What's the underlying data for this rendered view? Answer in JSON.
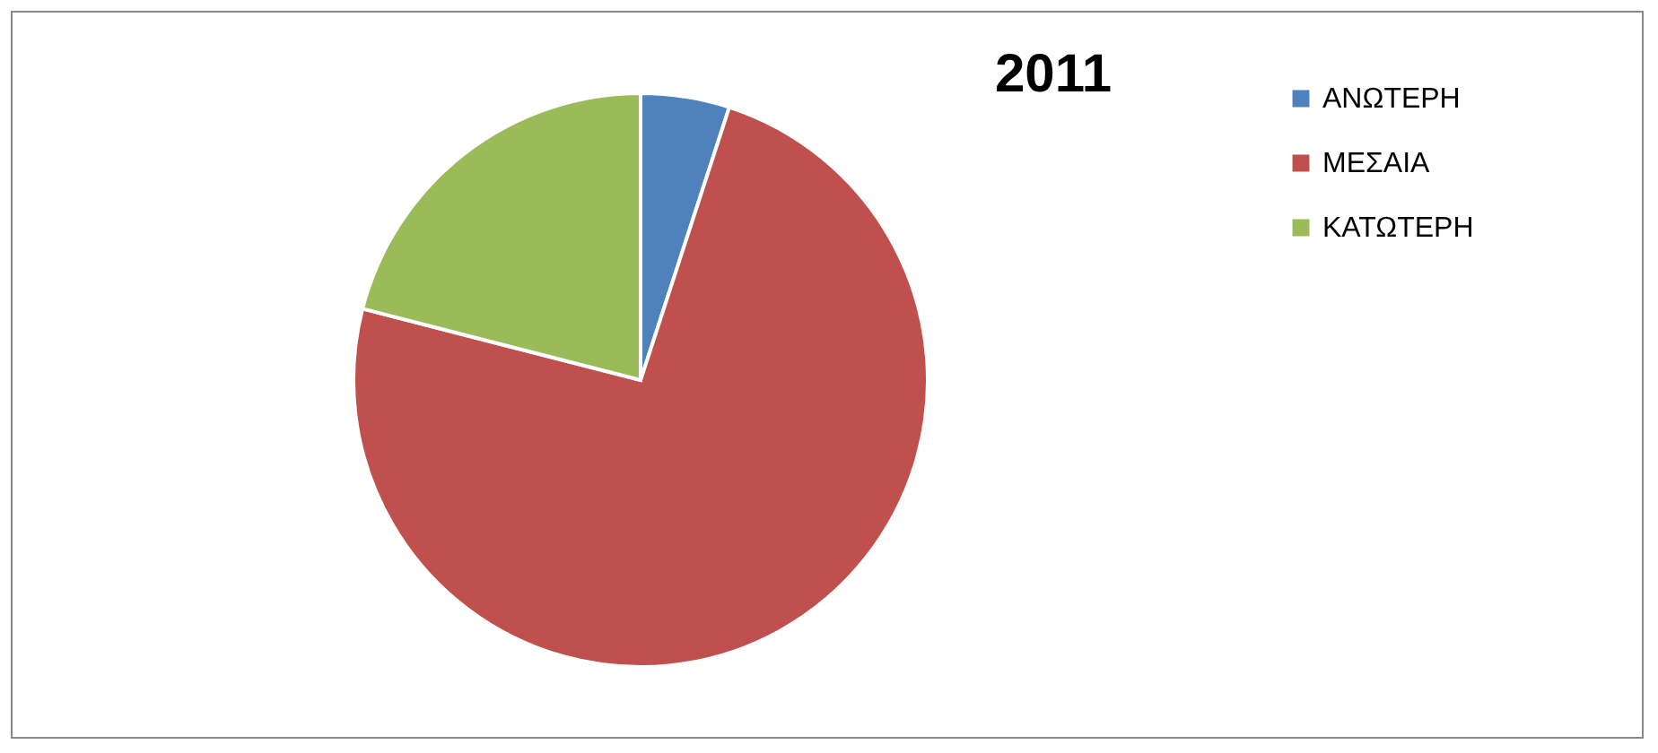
{
  "chart_data": {
    "type": "pie",
    "title": "2011",
    "categories": [
      "ΑΝΩΤΕΡΗ",
      "ΜΕΣΑΙΑ",
      "ΚΑΤΩΤΕΡΗ"
    ],
    "values": [
      5,
      74,
      21
    ],
    "colors": [
      "#4f81bd",
      "#c0504d",
      "#9bbb59"
    ],
    "legend": "right"
  }
}
